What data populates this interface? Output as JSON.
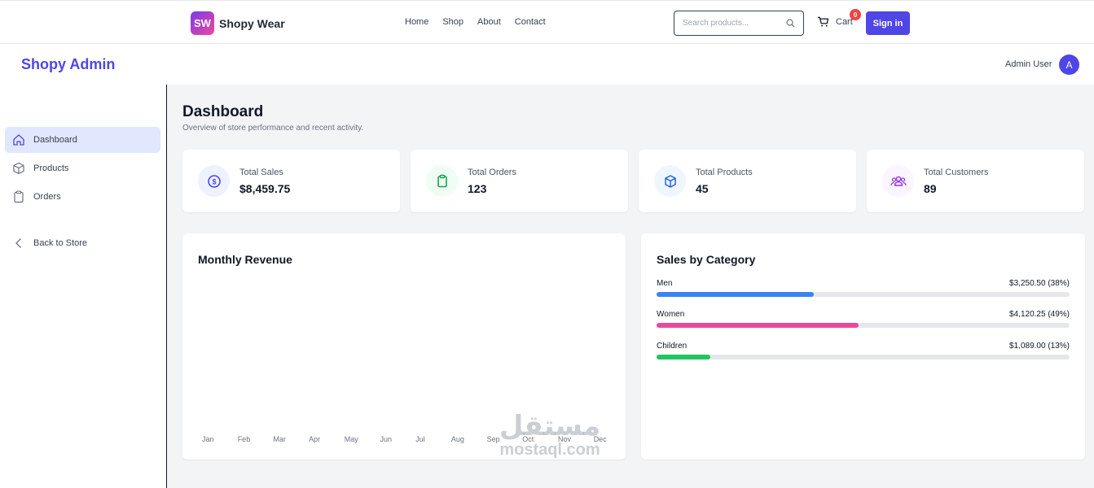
{
  "header": {
    "logo_text": "SW",
    "brand": "Shopy Wear",
    "nav": [
      "Home",
      "Shop",
      "About",
      "Contact"
    ],
    "search_placeholder": "Search products...",
    "cart_label": "Cart",
    "cart_count": "0",
    "signin_label": "Sign in"
  },
  "admin": {
    "title": "Shopy Admin",
    "user_name": "Admin User",
    "avatar_letter": "A"
  },
  "sidebar": {
    "items": [
      {
        "label": "Dashboard",
        "icon": "home-icon",
        "active": true
      },
      {
        "label": "Products",
        "icon": "box-icon",
        "active": false
      },
      {
        "label": "Orders",
        "icon": "clipboard-icon",
        "active": false
      },
      {
        "label": "Back to Store",
        "icon": "chevron-left-icon",
        "active": false
      }
    ]
  },
  "page": {
    "title": "Dashboard",
    "subtitle": "Overview of store performance and recent activity."
  },
  "stats": [
    {
      "label": "Total Sales",
      "value": "$8,459.75",
      "icon": "dollar-icon",
      "color": "#4f46e5"
    },
    {
      "label": "Total Orders",
      "value": "123",
      "icon": "clipboard-icon",
      "color": "#16a34a"
    },
    {
      "label": "Total Products",
      "value": "45",
      "icon": "cube-icon",
      "color": "#2563eb"
    },
    {
      "label": "Total Customers",
      "value": "89",
      "icon": "users-icon",
      "color": "#9333ea"
    }
  ],
  "revenue": {
    "title": "Monthly Revenue",
    "months": [
      "Jan",
      "Feb",
      "Mar",
      "Apr",
      "May",
      "Jun",
      "Jul",
      "Aug",
      "Sep",
      "Oct",
      "Nov",
      "Dec"
    ]
  },
  "categories": {
    "title": "Sales by Category",
    "items": [
      {
        "name": "Men",
        "value": "$3,250.50 (38%)",
        "percent": 38,
        "color": "#3b82f6"
      },
      {
        "name": "Women",
        "value": "$4,120.25 (49%)",
        "percent": 49,
        "color": "#ec4899"
      },
      {
        "name": "Children",
        "value": "$1,089.00 (13%)",
        "percent": 13,
        "color": "#22c55e"
      }
    ]
  },
  "watermark": {
    "arabic": "مستقل",
    "latin": "mostaql.com"
  }
}
